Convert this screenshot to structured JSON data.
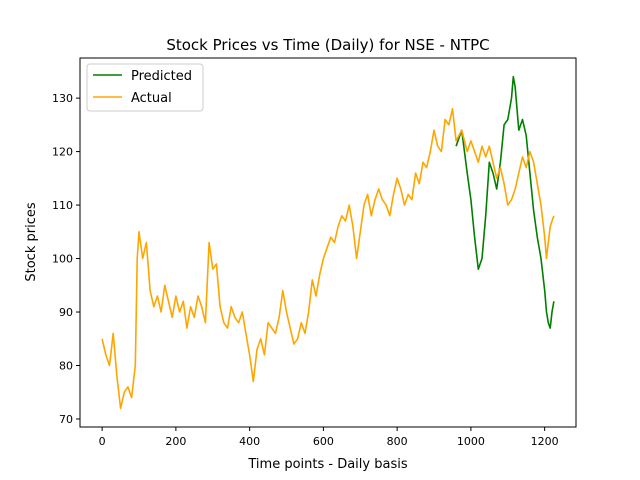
{
  "chart_data": {
    "type": "line",
    "title": "Stock Prices vs Time (Daily) for NSE - NTPC",
    "xlabel": "Time points - Daily basis",
    "ylabel": "Stock prices",
    "xlim": [
      -60,
      1285
    ],
    "ylim": [
      68.5,
      137.5
    ],
    "xticks": [
      0,
      200,
      400,
      600,
      800,
      1000,
      1200
    ],
    "yticks": [
      70,
      80,
      90,
      100,
      110,
      120,
      130
    ],
    "grid": false,
    "legend": {
      "placement": "top-left",
      "entries": [
        "Predicted",
        "Actual"
      ]
    },
    "series": [
      {
        "name": "Predicted",
        "color": "#008000",
        "x": [
          960,
          975,
          990,
          1000,
          1010,
          1020,
          1030,
          1040,
          1050,
          1060,
          1070,
          1080,
          1090,
          1100,
          1110,
          1115,
          1120,
          1125,
          1130,
          1140,
          1150,
          1160,
          1170,
          1180,
          1190,
          1200,
          1205,
          1210,
          1215,
          1220,
          1225
        ],
        "values": [
          121,
          124,
          116,
          111,
          104,
          98,
          100,
          108,
          118,
          116,
          113,
          118,
          125,
          126,
          130,
          134,
          132,
          128,
          124,
          126,
          123,
          116,
          109,
          104,
          100,
          94,
          90,
          88,
          87,
          90,
          92
        ]
      },
      {
        "name": "Actual",
        "color": "#ffa500",
        "x": [
          0,
          10,
          20,
          30,
          40,
          50,
          60,
          70,
          80,
          90,
          95,
          100,
          110,
          120,
          130,
          140,
          150,
          160,
          170,
          180,
          190,
          200,
          210,
          220,
          230,
          240,
          250,
          260,
          270,
          280,
          290,
          300,
          310,
          320,
          330,
          340,
          350,
          360,
          370,
          380,
          390,
          400,
          410,
          420,
          430,
          440,
          450,
          460,
          470,
          480,
          490,
          500,
          510,
          520,
          530,
          540,
          550,
          560,
          570,
          580,
          590,
          600,
          610,
          620,
          630,
          640,
          650,
          660,
          670,
          680,
          690,
          700,
          710,
          720,
          730,
          740,
          750,
          760,
          770,
          780,
          790,
          800,
          810,
          820,
          830,
          840,
          850,
          860,
          870,
          880,
          890,
          900,
          910,
          920,
          930,
          940,
          950,
          960,
          975,
          990,
          1000,
          1010,
          1020,
          1030,
          1040,
          1050,
          1060,
          1070,
          1080,
          1090,
          1100,
          1110,
          1120,
          1130,
          1140,
          1150,
          1160,
          1170,
          1180,
          1190,
          1200,
          1205,
          1210,
          1215,
          1220,
          1225
        ],
        "values": [
          85,
          82,
          80,
          86,
          78,
          72,
          75,
          76,
          74,
          80,
          100,
          105,
          100,
          103,
          94,
          91,
          93,
          90,
          95,
          92,
          89,
          93,
          90,
          92,
          87,
          91,
          89,
          93,
          91,
          88,
          103,
          98,
          99,
          91,
          88,
          87,
          91,
          89,
          88,
          90,
          86,
          82,
          77,
          83,
          85,
          82,
          88,
          87,
          86,
          89,
          94,
          90,
          87,
          84,
          85,
          88,
          86,
          90,
          96,
          93,
          97,
          100,
          102,
          104,
          103,
          106,
          108,
          107,
          110,
          106,
          100,
          105,
          110,
          112,
          108,
          111,
          113,
          111,
          110,
          108,
          112,
          115,
          113,
          110,
          112,
          111,
          116,
          114,
          118,
          117,
          120,
          124,
          121,
          120,
          126,
          125,
          128,
          122,
          124,
          120,
          122,
          120,
          118,
          121,
          119,
          121,
          118,
          115,
          117,
          114,
          110,
          111,
          113,
          116,
          119,
          117,
          120,
          118,
          114,
          110,
          104,
          100,
          103,
          106,
          107,
          108
        ]
      }
    ]
  }
}
